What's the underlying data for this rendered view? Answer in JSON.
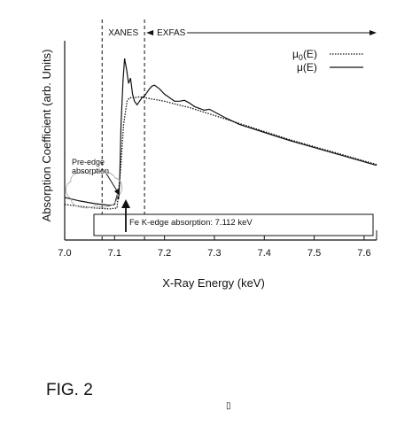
{
  "chart_data": {
    "type": "line",
    "xlabel": "X-Ray Energy (keV)",
    "ylabel": "Absorption Coefficient (arb. Units)",
    "xlim": [
      7.0,
      7.625
    ],
    "ylim": [
      0,
      1
    ],
    "x_ticks": [
      "7.0",
      "7.1",
      "7.2",
      "7.3",
      "7.4",
      "7.5",
      "7.6"
    ],
    "x_tick_values": [
      7.0,
      7.1,
      7.2,
      7.3,
      7.4,
      7.5,
      7.6
    ],
    "legend": {
      "position": "top-right"
    },
    "series": [
      {
        "name": "μ0(E)",
        "name_base": "μ",
        "name_sub": "0",
        "name_suffix": "(E)",
        "style": "dotted",
        "x": [
          7.0,
          7.03,
          7.06,
          7.09,
          7.105,
          7.112,
          7.118,
          7.125,
          7.13,
          7.14,
          7.15,
          7.16,
          7.17,
          7.18,
          7.2,
          7.22,
          7.25,
          7.3,
          7.35,
          7.4,
          7.45,
          7.5,
          7.55,
          7.6,
          7.625
        ],
        "y": [
          0.1,
          0.09,
          0.08,
          0.075,
          0.08,
          0.3,
          0.55,
          0.68,
          0.7,
          0.7,
          0.705,
          0.7,
          0.695,
          0.69,
          0.68,
          0.665,
          0.645,
          0.6,
          0.555,
          0.51,
          0.465,
          0.425,
          0.385,
          0.345,
          0.325
        ]
      },
      {
        "name": "μ(E)",
        "name_base": "μ",
        "name_sub": "",
        "name_suffix": "(E)",
        "style": "solid",
        "x": [
          7.0,
          7.03,
          7.06,
          7.09,
          7.1,
          7.105,
          7.108,
          7.11,
          7.113,
          7.117,
          7.12,
          7.124,
          7.128,
          7.132,
          7.136,
          7.14,
          7.145,
          7.15,
          7.155,
          7.16,
          7.165,
          7.17,
          7.175,
          7.18,
          7.19,
          7.2,
          7.21,
          7.22,
          7.23,
          7.24,
          7.25,
          7.26,
          7.27,
          7.28,
          7.29,
          7.3,
          7.32,
          7.35,
          7.4,
          7.45,
          7.5,
          7.55,
          7.6,
          7.625
        ],
        "y": [
          0.14,
          0.12,
          0.105,
          0.095,
          0.1,
          0.15,
          0.13,
          0.22,
          0.55,
          0.8,
          0.92,
          0.86,
          0.78,
          0.81,
          0.72,
          0.68,
          0.66,
          0.68,
          0.7,
          0.71,
          0.73,
          0.75,
          0.765,
          0.77,
          0.75,
          0.72,
          0.7,
          0.68,
          0.68,
          0.685,
          0.67,
          0.65,
          0.64,
          0.63,
          0.635,
          0.62,
          0.59,
          0.55,
          0.505,
          0.46,
          0.42,
          0.38,
          0.34,
          0.32
        ]
      }
    ],
    "regions": [
      {
        "label": "XANES",
        "from": 7.075,
        "to": 7.16
      },
      {
        "label": "EXFAS",
        "from": 7.16,
        "to": 7.625
      }
    ],
    "annotations": [
      {
        "text_lines": [
          "Pre-edge",
          "absorption"
        ],
        "x": 7.08,
        "y": 0.2
      },
      {
        "text": "Fe K-edge absorption: 7.112 keV",
        "x": 7.112,
        "y": 0.06
      }
    ]
  },
  "figure": {
    "caption": "FIG. 2",
    "marker": "▯"
  }
}
